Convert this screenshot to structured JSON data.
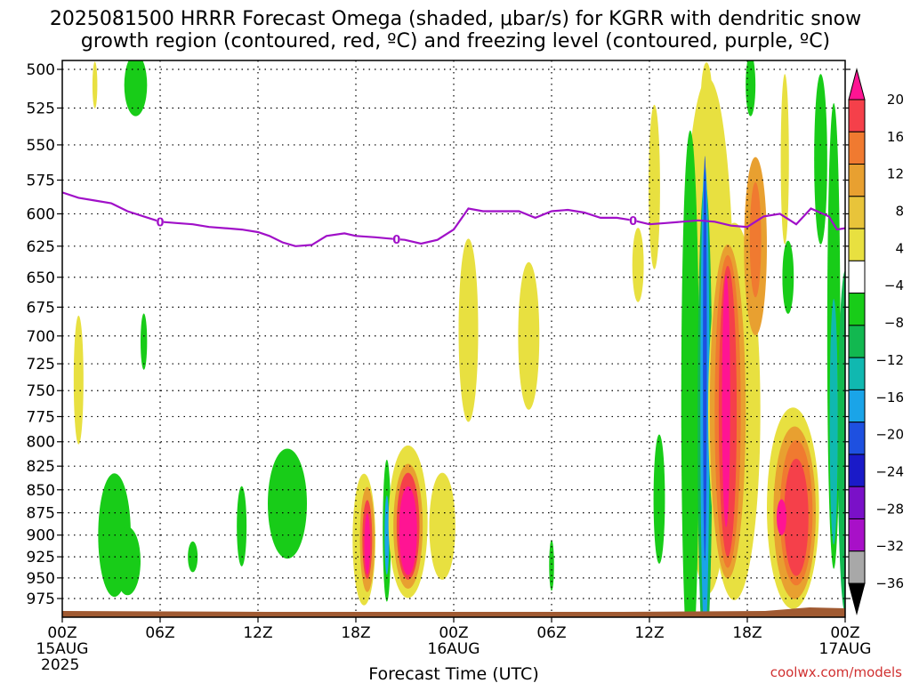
{
  "title_line1": "2025081500 HRRR Forecast Omega (shaded, μbar/s) for KGRR with dendritic snow",
  "title_line2": "growth region (contoured, red, ºC) and freezing level (contoured, purple, ºC)",
  "xlabel": "Forecast Time (UTC)",
  "credit": "coolwx.com/models",
  "freezing_label": "0",
  "chart_data": {
    "type": "heatmap",
    "y_axis": {
      "label": "",
      "ticks": [
        500,
        525,
        550,
        575,
        600,
        625,
        650,
        675,
        700,
        725,
        750,
        775,
        800,
        825,
        850,
        875,
        900,
        925,
        950,
        975
      ],
      "range": [
        500,
        990
      ],
      "scale": "log-pressure",
      "grid": true
    },
    "x_axis": {
      "range_hours": [
        0,
        48
      ],
      "ticks": [
        {
          "hour": 0,
          "label": "00Z",
          "sub": "15AUG",
          "sub2": "2025"
        },
        {
          "hour": 6,
          "label": "06Z",
          "sub": "",
          "sub2": ""
        },
        {
          "hour": 12,
          "label": "12Z",
          "sub": "",
          "sub2": ""
        },
        {
          "hour": 18,
          "label": "18Z",
          "sub": "",
          "sub2": ""
        },
        {
          "hour": 24,
          "label": "00Z",
          "sub": "16AUG",
          "sub2": ""
        },
        {
          "hour": 30,
          "label": "06Z",
          "sub": "",
          "sub2": ""
        },
        {
          "hour": 36,
          "label": "12Z",
          "sub": "",
          "sub2": ""
        },
        {
          "hour": 42,
          "label": "18Z",
          "sub": "",
          "sub2": ""
        },
        {
          "hour": 48,
          "label": "00Z",
          "sub": "17AUG",
          "sub2": ""
        }
      ],
      "grid": true
    },
    "colorbar": {
      "labels": [
        "20",
        "16",
        "12",
        "8",
        "4",
        "−4",
        "−8",
        "−12",
        "−16",
        "−20",
        "−24",
        "−28",
        "−32",
        "−36"
      ],
      "bins": [
        "#ff1493",
        "#f5404a",
        "#f07a30",
        "#e8a030",
        "#e8c43a",
        "#e8e040",
        "#ffffff",
        "#18cc18",
        "#12b850",
        "#10b8b0",
        "#1aa4e8",
        "#1e50e0",
        "#1a1ac8",
        "#7a10c8",
        "#a810c8",
        "#a8a8a8",
        "#000000"
      ]
    },
    "freezing_level": {
      "label_value": "0",
      "points": [
        [
          0,
          584
        ],
        [
          1,
          588
        ],
        [
          2,
          590
        ],
        [
          3,
          592
        ],
        [
          4,
          598
        ],
        [
          5,
          602
        ],
        [
          6,
          606
        ],
        [
          7,
          607
        ],
        [
          8,
          608
        ],
        [
          9,
          610
        ],
        [
          10,
          611
        ],
        [
          11,
          612
        ],
        [
          12,
          614
        ],
        [
          12.7,
          617
        ],
        [
          13.5,
          622
        ],
        [
          14.3,
          625
        ],
        [
          15.3,
          624
        ],
        [
          16.2,
          617
        ],
        [
          17.3,
          615
        ],
        [
          18,
          617
        ],
        [
          19.2,
          618
        ],
        [
          20,
          619
        ],
        [
          21,
          620
        ],
        [
          22,
          623
        ],
        [
          23,
          620
        ],
        [
          24,
          612
        ],
        [
          24.9,
          596
        ],
        [
          25.8,
          598
        ],
        [
          27,
          598
        ],
        [
          28,
          598
        ],
        [
          29,
          603
        ],
        [
          30,
          598
        ],
        [
          31,
          597
        ],
        [
          32,
          599
        ],
        [
          33,
          603
        ],
        [
          34,
          603
        ],
        [
          35,
          605
        ],
        [
          36,
          608
        ],
        [
          37,
          607
        ],
        [
          38,
          606
        ],
        [
          39,
          605
        ],
        [
          40,
          606
        ],
        [
          41,
          609
        ],
        [
          42,
          610
        ],
        [
          43,
          602
        ],
        [
          44,
          600
        ],
        [
          45,
          608
        ],
        [
          45.9,
          596
        ],
        [
          47,
          602
        ],
        [
          47.5,
          612
        ],
        [
          48,
          611
        ]
      ],
      "label_hours": [
        6,
        20.5,
        35
      ]
    },
    "omega_cells": [
      {
        "x": 24.9,
        "p": 695,
        "rx": 0.6,
        "rp": 80,
        "c": "#e8e040"
      },
      {
        "x": 28.6,
        "p": 700,
        "rx": 0.65,
        "rp": 65,
        "c": "#e8e040"
      },
      {
        "x": 1,
        "p": 740,
        "rx": 0.3,
        "rp": 60,
        "c": "#e8e040"
      },
      {
        "x": 2,
        "p": 510,
        "rx": 0.15,
        "rp": 15,
        "c": "#e8e040"
      },
      {
        "x": 4.5,
        "p": 510,
        "rx": 0.7,
        "rp": 20,
        "c": "#18cc18"
      },
      {
        "x": 5,
        "p": 705,
        "rx": 0.2,
        "rp": 25,
        "c": "#18cc18"
      },
      {
        "x": 3.2,
        "p": 900,
        "rx": 1.0,
        "rp": 70,
        "c": "#18cc18"
      },
      {
        "x": 4,
        "p": 930,
        "rx": 0.8,
        "rp": 40,
        "c": "#18cc18"
      },
      {
        "x": 8,
        "p": 925,
        "rx": 0.3,
        "rp": 18,
        "c": "#18cc18"
      },
      {
        "x": 11,
        "p": 890,
        "rx": 0.3,
        "rp": 45,
        "c": "#18cc18"
      },
      {
        "x": 13.8,
        "p": 865,
        "rx": 1.2,
        "rp": 60,
        "c": "#18cc18"
      },
      {
        "x": 30,
        "p": 935,
        "rx": 0.15,
        "rp": 30,
        "c": "#18cc18"
      },
      {
        "x": 18.5,
        "p": 905,
        "rx": 0.7,
        "rp": 75,
        "c": "#e8e040"
      },
      {
        "x": 18.7,
        "p": 905,
        "rx": 0.45,
        "rp": 60,
        "c": "#e8a030"
      },
      {
        "x": 18.7,
        "p": 905,
        "rx": 0.3,
        "rp": 45,
        "c": "#f5404a"
      },
      {
        "x": 18.7,
        "p": 910,
        "rx": 0.18,
        "rp": 35,
        "c": "#ff1493"
      },
      {
        "x": 19.9,
        "p": 895,
        "rx": 0.25,
        "rp": 80,
        "c": "#18cc18"
      },
      {
        "x": 19.9,
        "p": 900,
        "rx": 0.14,
        "rp": 45,
        "c": "#1aa4e8"
      },
      {
        "x": 21.2,
        "p": 885,
        "rx": 1.2,
        "rp": 85,
        "c": "#e8e040"
      },
      {
        "x": 21.2,
        "p": 890,
        "rx": 0.9,
        "rp": 70,
        "c": "#e8a030"
      },
      {
        "x": 21.2,
        "p": 890,
        "rx": 0.7,
        "rp": 60,
        "c": "#f5404a"
      },
      {
        "x": 21.2,
        "p": 895,
        "rx": 0.55,
        "rp": 50,
        "c": "#ff1493"
      },
      {
        "x": 23.3,
        "p": 890,
        "rx": 0.8,
        "rp": 60,
        "c": "#e8e040"
      },
      {
        "x": 35.3,
        "p": 640,
        "rx": 0.35,
        "rp": 30,
        "c": "#e8e040"
      },
      {
        "x": 36.3,
        "p": 580,
        "rx": 0.35,
        "rp": 60,
        "c": "#e8e040"
      },
      {
        "x": 36.6,
        "p": 860,
        "rx": 0.35,
        "rp": 70,
        "c": "#18cc18"
      },
      {
        "x": 39.6,
        "p": 700,
        "rx": 1.6,
        "rp": 220,
        "c": "#e8e040"
      },
      {
        "x": 38.5,
        "p": 760,
        "rx": 0.55,
        "rp": 250,
        "c": "#18cc18"
      },
      {
        "x": 39.5,
        "p": 520,
        "rx": 0.35,
        "rp": 25,
        "c": "#e8e040"
      },
      {
        "x": 39.4,
        "p": 780,
        "rx": 0.45,
        "rp": 230,
        "c": "#12b850"
      },
      {
        "x": 39.4,
        "p": 760,
        "rx": 0.28,
        "rp": 220,
        "c": "#1aa4e8"
      },
      {
        "x": 39.4,
        "p": 720,
        "rx": 0.12,
        "rp": 180,
        "c": "#1e50e0"
      },
      {
        "x": 41.2,
        "p": 770,
        "rx": 1.6,
        "rp": 180,
        "c": "#e8e040"
      },
      {
        "x": 40.8,
        "p": 770,
        "rx": 1.1,
        "rp": 160,
        "c": "#e8a030"
      },
      {
        "x": 40.8,
        "p": 770,
        "rx": 0.8,
        "rp": 150,
        "c": "#f07a30"
      },
      {
        "x": 40.8,
        "p": 770,
        "rx": 0.55,
        "rp": 140,
        "c": "#f5404a"
      },
      {
        "x": 40.7,
        "p": 760,
        "rx": 0.25,
        "rp": 120,
        "c": "#ff1493"
      },
      {
        "x": 42.5,
        "p": 625,
        "rx": 0.7,
        "rp": 70,
        "c": "#e8a030"
      },
      {
        "x": 42.5,
        "p": 620,
        "rx": 0.35,
        "rp": 45,
        "c": "#f07a30"
      },
      {
        "x": 42.2,
        "p": 510,
        "rx": 0.3,
        "rp": 20,
        "c": "#18cc18"
      },
      {
        "x": 44.3,
        "p": 560,
        "rx": 0.25,
        "rp": 60,
        "c": "#e8e040"
      },
      {
        "x": 44.8,
        "p": 870,
        "rx": 1.6,
        "rp": 110,
        "c": "#e8e040"
      },
      {
        "x": 44.9,
        "p": 875,
        "rx": 1.3,
        "rp": 95,
        "c": "#e8a030"
      },
      {
        "x": 45,
        "p": 875,
        "rx": 1.0,
        "rp": 80,
        "c": "#f07a30"
      },
      {
        "x": 45,
        "p": 880,
        "rx": 0.75,
        "rp": 65,
        "c": "#f5404a"
      },
      {
        "x": 44.1,
        "p": 880,
        "rx": 0.3,
        "rp": 20,
        "c": "#ff1493"
      },
      {
        "x": 44.5,
        "p": 650,
        "rx": 0.35,
        "rp": 30,
        "c": "#18cc18"
      },
      {
        "x": 46.5,
        "p": 560,
        "rx": 0.4,
        "rp": 60,
        "c": "#18cc18"
      },
      {
        "x": 47.3,
        "p": 700,
        "rx": 0.4,
        "rp": 200,
        "c": "#18cc18"
      },
      {
        "x": 47.3,
        "p": 780,
        "rx": 0.25,
        "rp": 120,
        "c": "#10b8b0"
      },
      {
        "x": 48,
        "p": 800,
        "rx": 0.45,
        "rp": 170,
        "c": "#12b850"
      }
    ]
  }
}
